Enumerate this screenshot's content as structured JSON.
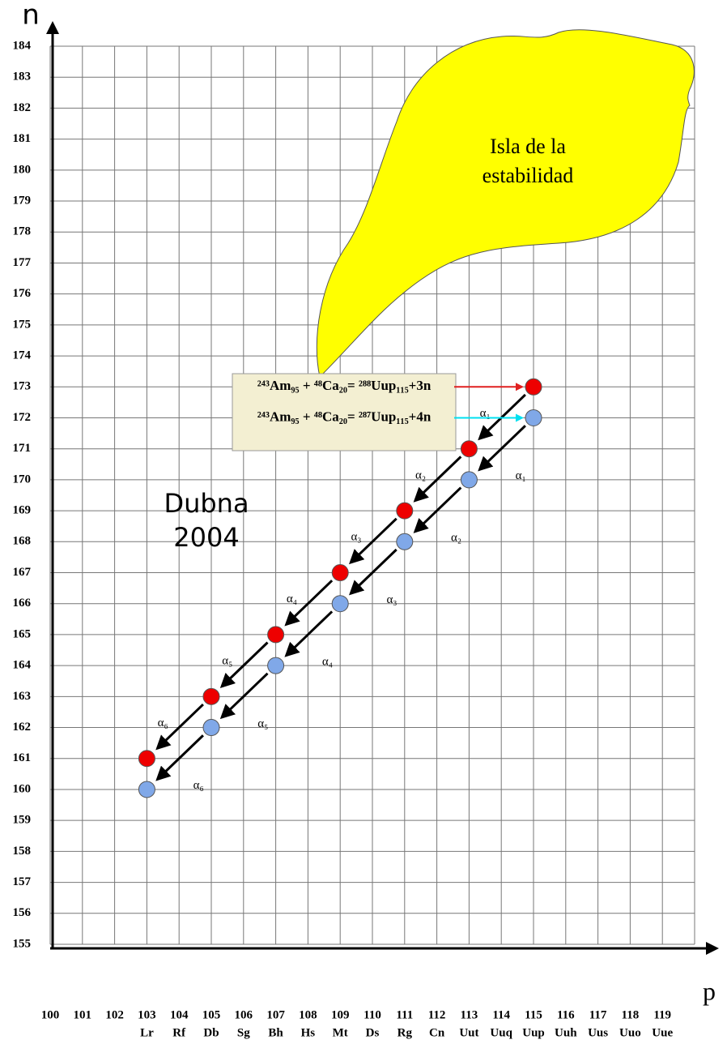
{
  "chart_data": {
    "type": "scatter",
    "x_label": "p",
    "y_label": "n",
    "xlim": [
      100,
      120
    ],
    "ylim": [
      155,
      184
    ],
    "xticks": [
      100,
      101,
      102,
      103,
      104,
      105,
      106,
      107,
      108,
      109,
      110,
      111,
      112,
      113,
      114,
      115,
      116,
      117,
      118,
      119
    ],
    "xtick_symbols": [
      null,
      null,
      null,
      "Lr",
      "Rf",
      "Db",
      "Sg",
      "Bh",
      "Hs",
      "Mt",
      "Ds",
      "Rg",
      "Cn",
      "Uut",
      "Uuq",
      "Uup",
      "Uuh",
      "Uus",
      "Uuo",
      "Uue"
    ],
    "yticks": [
      155,
      156,
      157,
      158,
      159,
      160,
      161,
      162,
      163,
      164,
      165,
      166,
      167,
      168,
      169,
      170,
      171,
      172,
      173,
      174,
      175,
      176,
      177,
      178,
      179,
      180,
      181,
      182,
      183,
      184
    ],
    "grid": true,
    "series": [
      {
        "color": "#ee0000",
        "x": [
          115,
          113,
          111,
          109,
          107,
          105,
          103
        ],
        "values": [
          173,
          171,
          169,
          167,
          165,
          163,
          161
        ],
        "arrow_labels": [
          "α₁",
          "α₂",
          "α₃",
          "α₄",
          "α₅",
          "α₆"
        ],
        "reaction": "²⁴³Am₉₅ + ⁴⁸Ca₂₀= ²⁸⁸Uup₁₁₅+3n",
        "reaction_arrow_color": "#e02020"
      },
      {
        "color": "#80a8e8",
        "x": [
          115,
          113,
          111,
          109,
          107,
          105,
          103
        ],
        "values": [
          172,
          170,
          168,
          166,
          164,
          162,
          160
        ],
        "arrow_labels": [
          "α₁",
          "α₂",
          "α₃",
          "α₄",
          "α₅",
          "α₆"
        ],
        "reaction": "²⁴³Am₉₅ + ⁴⁸Ca₂₀= ²⁸⁷Uup₁₁₅+4n",
        "reaction_arrow_color": "#00e0f0"
      }
    ],
    "island_label": [
      "Isla de la",
      "estabilidad"
    ],
    "annotation": [
      "Dubna",
      "2004"
    ]
  }
}
